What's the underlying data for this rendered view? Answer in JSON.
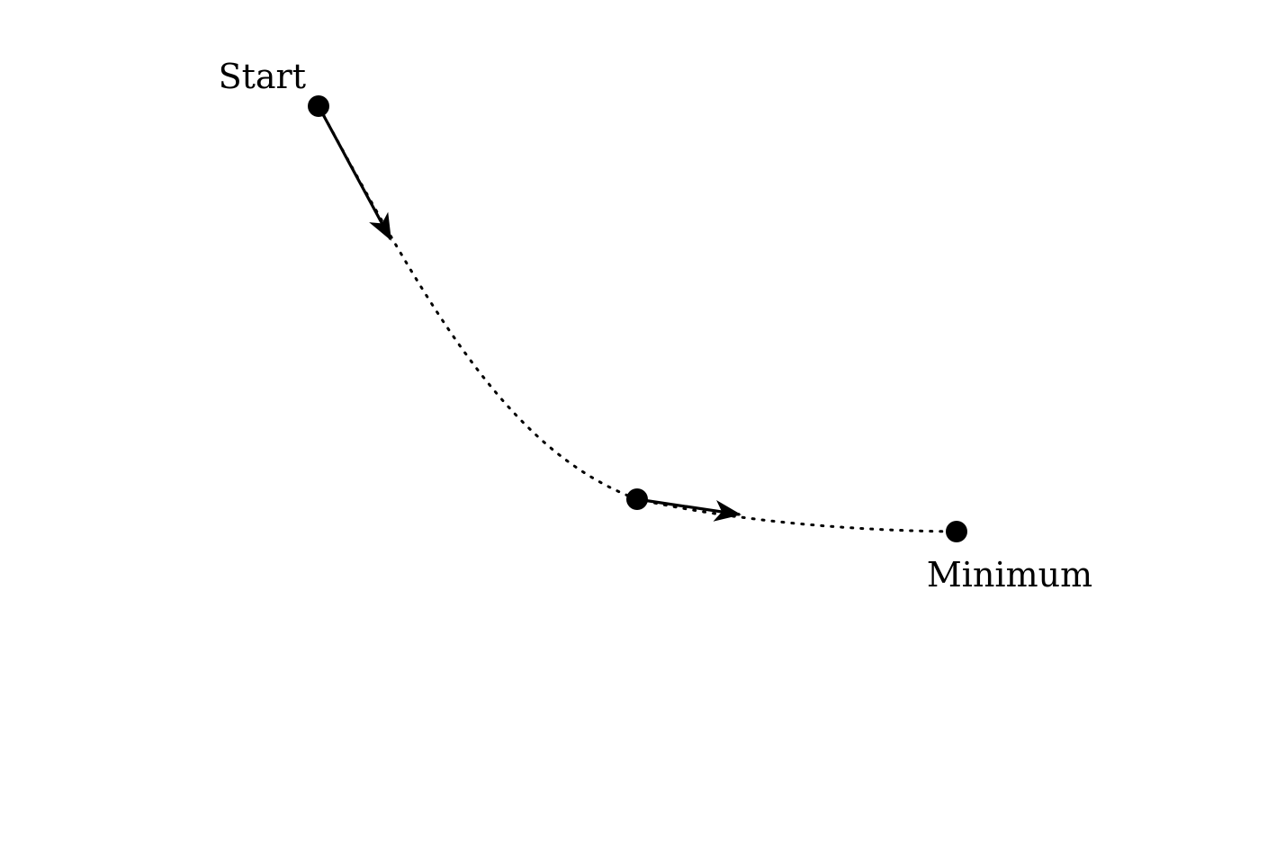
{
  "diagram": {
    "labels": {
      "start": "Start",
      "minimum": "Minimum"
    },
    "colors": {
      "ink": "#000000",
      "background": "#ffffff"
    },
    "path_style": "dotted",
    "step_arrows": 2
  }
}
